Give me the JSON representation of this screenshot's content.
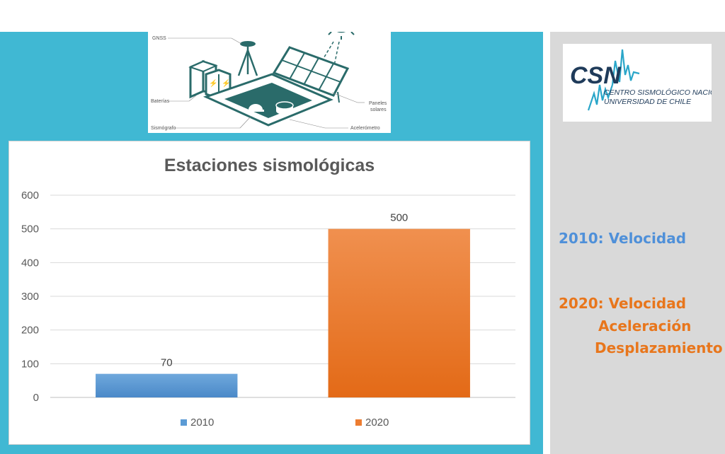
{
  "diagram": {
    "labels": {
      "gnss": "GNSS",
      "baterias": "Baterías",
      "sismografo": "Sismógrafo",
      "paneles_1": "Paneles",
      "paneles_2": "solares",
      "acelerometro": "Acelerómetro"
    },
    "icons": [
      "sun-icon",
      "solar-panel-icon",
      "gnss-antenna-icon",
      "battery-icon",
      "seismograph-icon",
      "accelerometer-icon"
    ]
  },
  "logo": {
    "mark": "CSN",
    "line1": "CENTRO SISMOLÓGICO NACIONAL",
    "line2": "UNIVERSIDAD DE CHILE"
  },
  "notes": {
    "n2010": "2010: Velocidad",
    "n2020_1": "2020: Velocidad",
    "n2020_2": "Aceleración",
    "n2020_3": "Desplazamiento"
  },
  "colors": {
    "panel_blue": "#40b8d3",
    "bar_2010": "#5b9bd5",
    "bar_2020": "#ed7d31",
    "note_blue": "#4f90d9",
    "note_orange": "#e8761c"
  },
  "chart_data": {
    "type": "bar",
    "title": "Estaciones sismológicas",
    "xlabel": "",
    "ylabel": "",
    "ylim": [
      0,
      600
    ],
    "yticks": [
      0,
      100,
      200,
      300,
      400,
      500,
      600
    ],
    "grid": true,
    "legend_position": "bottom",
    "series": [
      {
        "name": "2010",
        "value": 70,
        "color": "#5b9bd5"
      },
      {
        "name": "2020",
        "value": 500,
        "color": "#ed7d31"
      }
    ]
  }
}
